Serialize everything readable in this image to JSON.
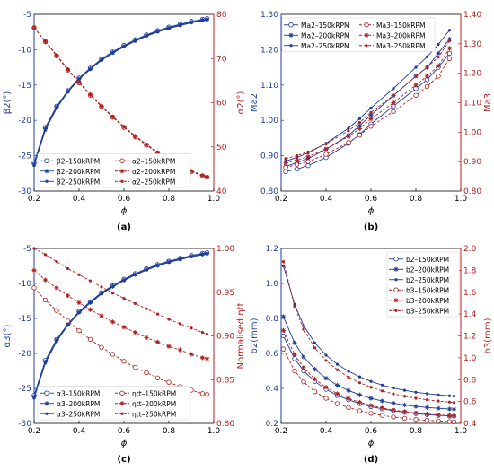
{
  "panels_meta": {
    "title": "",
    "layout": "2x2 grid"
  },
  "chart_data": [
    {
      "id": "a",
      "type": "line",
      "caption": "(a)",
      "xlabel": "ϕ",
      "ylabel_left": "β2(°)",
      "ylabel_right": "α2(°)",
      "xlim": [
        0.2,
        1.0
      ],
      "ylim_left": [
        -30,
        -5
      ],
      "ylim_right": [
        40,
        80
      ],
      "xticks": [
        "0.2",
        "0.4",
        "0.6",
        "0.8",
        "1.0"
      ],
      "yticks_left": [
        "-30",
        "-25",
        "-20",
        "-15",
        "-10",
        "-5"
      ],
      "yticks_right": [
        "40",
        "50",
        "60",
        "70",
        "80"
      ],
      "legend": {
        "position": "bottom",
        "columns": 2
      },
      "x": [
        0.2,
        0.25,
        0.3,
        0.35,
        0.4,
        0.45,
        0.5,
        0.55,
        0.6,
        0.65,
        0.7,
        0.75,
        0.8,
        0.85,
        0.9,
        0.95,
        0.97
      ],
      "series": [
        {
          "name": "β2–150kRPM",
          "axis": "left",
          "color": "#1f3c99",
          "dash": "solid",
          "marker": "circle-open",
          "values": [
            -26.0,
            -21.0,
            -18.0,
            -15.8,
            -14.0,
            -12.6,
            -11.3,
            -10.3,
            -9.4,
            -8.6,
            -7.9,
            -7.3,
            -6.8,
            -6.4,
            -6.0,
            -5.7,
            -5.6
          ]
        },
        {
          "name": "β2–200kRPM",
          "axis": "left",
          "color": "#1f3c99",
          "dash": "solid",
          "marker": "star",
          "values": [
            -26.2,
            -21.2,
            -18.1,
            -15.9,
            -14.1,
            -12.7,
            -11.4,
            -10.4,
            -9.5,
            -8.7,
            -8.0,
            -7.4,
            -6.9,
            -6.5,
            -6.1,
            -5.8,
            -5.7
          ]
        },
        {
          "name": "β2–250kRPM",
          "axis": "left",
          "color": "#1f3c99",
          "dash": "solid",
          "marker": "dot",
          "values": [
            -26.4,
            -21.4,
            -18.3,
            -16.0,
            -14.2,
            -12.8,
            -11.5,
            -10.5,
            -9.6,
            -8.8,
            -8.1,
            -7.5,
            -7.0,
            -6.6,
            -6.2,
            -5.9,
            -5.8
          ]
        },
        {
          "name": "α2–150kRPM",
          "axis": "right",
          "color": "#b02020",
          "dash": "dashed",
          "marker": "circle-open",
          "values": [
            77.0,
            73.8,
            70.6,
            67.4,
            64.5,
            61.7,
            59.1,
            56.7,
            54.4,
            52.3,
            50.4,
            48.6,
            47.0,
            45.6,
            44.4,
            43.4,
            43.1
          ]
        },
        {
          "name": "α2–200kRPM",
          "axis": "right",
          "color": "#b02020",
          "dash": "dashed",
          "marker": "star",
          "values": [
            77.0,
            73.9,
            70.7,
            67.5,
            64.6,
            61.8,
            59.2,
            56.8,
            54.5,
            52.4,
            50.5,
            48.7,
            47.1,
            45.7,
            44.5,
            43.5,
            43.2
          ]
        },
        {
          "name": "α2–250kRPM",
          "axis": "right",
          "color": "#b02020",
          "dash": "dashed",
          "marker": "dot",
          "values": [
            77.0,
            73.9,
            70.8,
            67.6,
            64.7,
            61.9,
            59.3,
            56.9,
            54.6,
            52.5,
            50.6,
            48.8,
            47.2,
            45.8,
            44.6,
            43.6,
            43.3
          ]
        }
      ]
    },
    {
      "id": "b",
      "type": "line",
      "caption": "(b)",
      "xlabel": "ϕ",
      "ylabel_left": "Ma2",
      "ylabel_right": "Ma3",
      "xlim": [
        0.2,
        1.0
      ],
      "ylim_left": [
        0.8,
        1.3
      ],
      "ylim_right": [
        0.8,
        1.4
      ],
      "xticks": [
        "0.2",
        "0.4",
        "0.6",
        "0.8",
        "1.0"
      ],
      "yticks_left": [
        "0.80",
        "0.90",
        "1.00",
        "1.10",
        "1.20",
        "1.30"
      ],
      "yticks_right": [
        "0.80",
        "0.90",
        "1.00",
        "1.10",
        "1.20",
        "1.30",
        "1.40"
      ],
      "legend": {
        "position": "top-left",
        "columns": 2
      },
      "x": [
        0.22,
        0.27,
        0.32,
        0.4,
        0.5,
        0.55,
        0.6,
        0.7,
        0.8,
        0.85,
        0.9,
        0.95
      ],
      "series": [
        {
          "name": "Ma2–150kRPM",
          "axis": "left",
          "color": "#1f3c99",
          "dash": "solid",
          "marker": "circle-open",
          "values": [
            0.855,
            0.862,
            0.872,
            0.895,
            0.935,
            0.96,
            0.99,
            1.04,
            1.09,
            1.115,
            1.15,
            1.19
          ]
        },
        {
          "name": "Ma2–200kRPM",
          "axis": "left",
          "color": "#1f3c99",
          "dash": "solid",
          "marker": "star",
          "values": [
            0.87,
            0.88,
            0.892,
            0.918,
            0.958,
            0.985,
            1.015,
            1.07,
            1.125,
            1.15,
            1.19,
            1.23
          ]
        },
        {
          "name": "Ma2–250kRPM",
          "axis": "left",
          "color": "#1f3c99",
          "dash": "solid",
          "marker": "dot",
          "values": [
            0.885,
            0.895,
            0.908,
            0.935,
            0.978,
            1.005,
            1.035,
            1.09,
            1.15,
            1.18,
            1.215,
            1.255
          ]
        },
        {
          "name": "Ma3–150kRPM",
          "axis": "right",
          "color": "#b02020",
          "dash": "dashed",
          "marker": "circle-open",
          "values": [
            0.88,
            0.89,
            0.9,
            0.925,
            0.965,
            0.99,
            1.02,
            1.07,
            1.125,
            1.155,
            1.19,
            1.25
          ]
        },
        {
          "name": "Ma3–200kRPM",
          "axis": "right",
          "color": "#b02020",
          "dash": "dashed",
          "marker": "star",
          "values": [
            0.895,
            0.905,
            0.917,
            0.943,
            0.985,
            1.012,
            1.045,
            1.1,
            1.16,
            1.19,
            1.225,
            1.285
          ]
        },
        {
          "name": "Ma3–250kRPM",
          "axis": "right",
          "color": "#b02020",
          "dash": "dashed",
          "marker": "dot",
          "values": [
            0.91,
            0.92,
            0.933,
            0.96,
            1.005,
            1.033,
            1.067,
            1.125,
            1.19,
            1.22,
            1.255,
            1.31
          ]
        }
      ]
    },
    {
      "id": "c",
      "type": "line",
      "caption": "(c)",
      "xlabel": "ϕ",
      "ylabel_left": "α3(°)",
      "ylabel_right": "Normalised ηtt",
      "xlim": [
        0.2,
        1.0
      ],
      "ylim_left": [
        -30,
        -5
      ],
      "ylim_right": [
        0.8,
        1.0
      ],
      "xticks": [
        "0.2",
        "0.4",
        "0.6",
        "0.8",
        "1.0"
      ],
      "yticks_left": [
        "-30",
        "-25",
        "-20",
        "-15",
        "-10",
        "-5"
      ],
      "yticks_right": [
        "0.80",
        "0.85",
        "0.90",
        "0.95",
        "1.00"
      ],
      "legend": {
        "position": "bottom-left",
        "columns": 2
      },
      "x": [
        0.2,
        0.25,
        0.3,
        0.35,
        0.4,
        0.45,
        0.5,
        0.55,
        0.6,
        0.65,
        0.7,
        0.75,
        0.8,
        0.85,
        0.9,
        0.95,
        0.97
      ],
      "series": [
        {
          "name": "α3–150kRPM",
          "axis": "left",
          "color": "#1f3c99",
          "dash": "solid",
          "marker": "circle-open",
          "values": [
            -26.0,
            -21.0,
            -18.0,
            -15.8,
            -14.0,
            -12.6,
            -11.3,
            -10.3,
            -9.4,
            -8.6,
            -7.9,
            -7.3,
            -6.8,
            -6.4,
            -6.0,
            -5.7,
            -5.6
          ]
        },
        {
          "name": "α3–200kRPM",
          "axis": "left",
          "color": "#1f3c99",
          "dash": "solid",
          "marker": "star",
          "values": [
            -26.2,
            -21.2,
            -18.1,
            -15.9,
            -14.1,
            -12.7,
            -11.4,
            -10.4,
            -9.5,
            -8.7,
            -8.0,
            -7.4,
            -6.9,
            -6.5,
            -6.1,
            -5.8,
            -5.7
          ]
        },
        {
          "name": "α3–250kRPM",
          "axis": "left",
          "color": "#1f3c99",
          "dash": "solid",
          "marker": "dot",
          "values": [
            -26.4,
            -21.4,
            -18.3,
            -16.0,
            -14.2,
            -12.8,
            -11.5,
            -10.5,
            -9.6,
            -8.8,
            -8.1,
            -7.5,
            -7.0,
            -6.6,
            -6.2,
            -5.9,
            -5.8
          ]
        },
        {
          "name": "ηtt–150kRPM",
          "axis": "right",
          "color": "#b02020",
          "dash": "dashed",
          "marker": "circle-open",
          "values": [
            0.955,
            0.941,
            0.929,
            0.917,
            0.906,
            0.896,
            0.887,
            0.879,
            0.871,
            0.864,
            0.858,
            0.852,
            0.847,
            0.842,
            0.838,
            0.834,
            0.833
          ]
        },
        {
          "name": "ηtt–200kRPM",
          "axis": "right",
          "color": "#b02020",
          "dash": "dashed",
          "marker": "star",
          "values": [
            0.975,
            0.964,
            0.955,
            0.946,
            0.938,
            0.93,
            0.923,
            0.916,
            0.91,
            0.904,
            0.898,
            0.893,
            0.888,
            0.884,
            0.879,
            0.875,
            0.874
          ]
        },
        {
          "name": "ηtt–250kRPM",
          "axis": "right",
          "color": "#b02020",
          "dash": "dashed",
          "marker": "dot",
          "values": [
            1.0,
            0.993,
            0.985,
            0.977,
            0.97,
            0.963,
            0.956,
            0.949,
            0.943,
            0.937,
            0.931,
            0.925,
            0.919,
            0.914,
            0.909,
            0.904,
            0.902
          ]
        }
      ]
    },
    {
      "id": "d",
      "type": "line",
      "caption": "(d)",
      "xlabel": "ϕ",
      "ylabel_left": "b2(mm)",
      "ylabel_right": "b3(mm)",
      "xlim": [
        0.2,
        1.0
      ],
      "ylim_left": [
        0.2,
        1.2
      ],
      "ylim_right": [
        0.4,
        2.0
      ],
      "xticks": [
        "0.2",
        "0.4",
        "0.6",
        "0.8",
        "1.0"
      ],
      "yticks_left": [
        "0.2",
        "0.4",
        "0.6",
        "0.8",
        "1.0",
        "1.2"
      ],
      "yticks_right": [
        "0.4",
        "0.6",
        "0.8",
        "1.0",
        "1.2",
        "1.4",
        "1.6",
        "1.8",
        "2.0"
      ],
      "legend": {
        "position": "top-right",
        "columns": 1
      },
      "x": [
        0.21,
        0.26,
        0.3,
        0.35,
        0.4,
        0.45,
        0.5,
        0.55,
        0.6,
        0.65,
        0.7,
        0.75,
        0.8,
        0.85,
        0.9,
        0.95,
        0.97
      ],
      "series": [
        {
          "name": "b2–150kRPM",
          "axis": "left",
          "color": "#1f3c99",
          "dash": "solid",
          "marker": "circle-open",
          "values": [
            0.7,
            0.57,
            0.5,
            0.44,
            0.395,
            0.36,
            0.335,
            0.313,
            0.296,
            0.283,
            0.272,
            0.263,
            0.256,
            0.25,
            0.246,
            0.242,
            0.241
          ]
        },
        {
          "name": "b2–200kRPM",
          "axis": "left",
          "color": "#1f3c99",
          "dash": "solid",
          "marker": "star",
          "values": [
            0.81,
            0.66,
            0.58,
            0.51,
            0.458,
            0.418,
            0.388,
            0.363,
            0.343,
            0.328,
            0.315,
            0.305,
            0.297,
            0.291,
            0.286,
            0.282,
            0.281
          ]
        },
        {
          "name": "b2–250kRPM",
          "axis": "left",
          "color": "#1f3c99",
          "dash": "solid",
          "marker": "dot",
          "values": [
            1.1,
            0.88,
            0.76,
            0.66,
            0.59,
            0.538,
            0.498,
            0.466,
            0.44,
            0.419,
            0.402,
            0.389,
            0.378,
            0.37,
            0.363,
            0.358,
            0.356
          ]
        },
        {
          "name": "b3–150kRPM",
          "axis": "right",
          "color": "#b02020",
          "dash": "dashed",
          "marker": "circle-open",
          "values": [
            1.08,
            0.88,
            0.78,
            0.69,
            0.63,
            0.58,
            0.545,
            0.515,
            0.492,
            0.473,
            0.458,
            0.446,
            0.436,
            0.428,
            0.421,
            0.416,
            0.414
          ]
        },
        {
          "name": "b3–200kRPM",
          "axis": "right",
          "color": "#b02020",
          "dash": "dashed",
          "marker": "star",
          "values": [
            1.25,
            1.03,
            0.91,
            0.805,
            0.73,
            0.672,
            0.628,
            0.593,
            0.564,
            0.541,
            0.522,
            0.507,
            0.495,
            0.485,
            0.477,
            0.47,
            0.468
          ]
        },
        {
          "name": "b3–250kRPM",
          "axis": "right",
          "color": "#b02020",
          "dash": "dashed",
          "marker": "dot",
          "values": [
            1.88,
            1.47,
            1.26,
            1.09,
            0.975,
            0.89,
            0.823,
            0.772,
            0.73,
            0.697,
            0.67,
            0.648,
            0.63,
            0.616,
            0.604,
            0.595,
            0.591
          ]
        }
      ]
    }
  ]
}
